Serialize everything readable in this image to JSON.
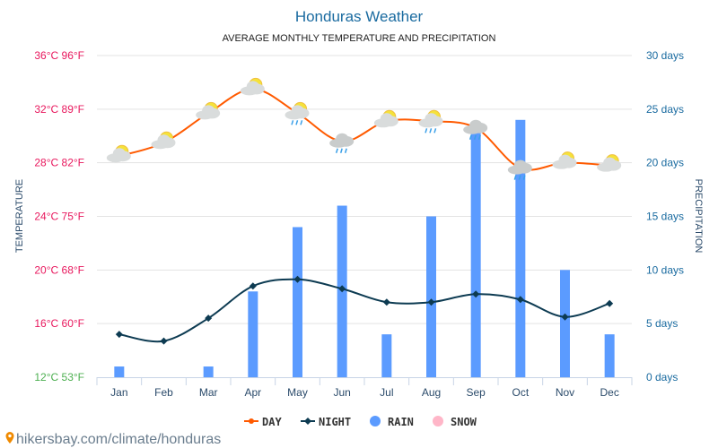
{
  "chart_data": {
    "type": "bar+line",
    "title": "Honduras Weather",
    "subtitle": "AVERAGE MONTHLY TEMPERATURE AND PRECIPITATION",
    "categories": [
      "Jan",
      "Feb",
      "Mar",
      "Apr",
      "May",
      "Jun",
      "Jul",
      "Aug",
      "Sep",
      "Oct",
      "Nov",
      "Dec"
    ],
    "left_axis": {
      "label": "TEMPERATURE",
      "range_c": [
        12,
        36
      ],
      "ticks": [
        "12°C 53°F",
        "16°C 60°F",
        "20°C 68°F",
        "24°C 75°F",
        "28°C 82°F",
        "32°C 89°F",
        "36°C 96°F"
      ],
      "tick_values": [
        12,
        16,
        20,
        24,
        28,
        32,
        36
      ]
    },
    "right_axis": {
      "label": "PRECIPITATION",
      "range": [
        0,
        30
      ],
      "ticks": [
        "0 days",
        "5 days",
        "10 days",
        "15 days",
        "20 days",
        "25 days",
        "30 days"
      ],
      "tick_values": [
        0,
        5,
        10,
        15,
        20,
        25,
        30
      ]
    },
    "grid": true,
    "legend_placement": "bottom",
    "series": [
      {
        "name": "DAY",
        "type": "line",
        "color": "#ff5a00",
        "values": [
          28.5,
          29.5,
          31.7,
          33.5,
          31.7,
          29.6,
          31.1,
          31.1,
          30.6,
          27.6,
          28.0,
          27.8
        ]
      },
      {
        "name": "NIGHT",
        "type": "line",
        "color": "#0d3b52",
        "values": [
          15.2,
          14.7,
          16.4,
          18.8,
          19.3,
          18.6,
          17.6,
          17.6,
          18.2,
          17.8,
          16.5,
          17.5
        ]
      },
      {
        "name": "RAIN",
        "type": "bar",
        "color": "#5b9bff",
        "values": [
          1,
          0,
          1,
          8,
          14,
          16,
          4,
          15,
          23,
          24,
          10,
          4
        ]
      },
      {
        "name": "SNOW",
        "type": "bar",
        "color": "#ffb6c8",
        "values": [
          0,
          0,
          0,
          0,
          0,
          0,
          0,
          0,
          0,
          0,
          0,
          0
        ]
      }
    ],
    "weather_icons": [
      "partly-cloudy",
      "partly-cloudy",
      "partly-cloudy",
      "partly-cloudy",
      "partly-cloudy-rain",
      "rain-cloud",
      "partly-cloudy",
      "partly-cloudy-rain",
      "rain-cloud",
      "rain-cloud",
      "partly-cloudy",
      "partly-cloudy"
    ]
  },
  "colors": {
    "title": "#1a6ba0",
    "left_ticks": "#e8175d",
    "bottom_left_tick": "#4caf50",
    "right_ticks": "#1a6ba0"
  },
  "footer": {
    "url": "hikersbay.com/climate/honduras",
    "icon": "map-pin-icon"
  }
}
